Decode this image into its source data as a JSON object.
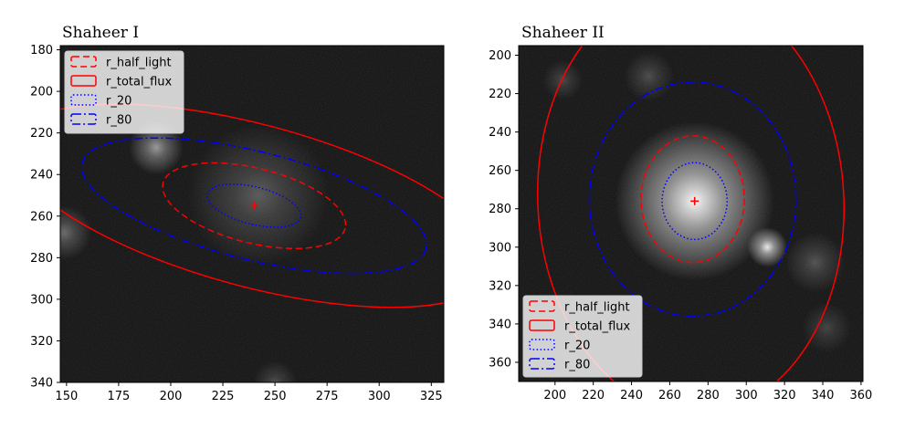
{
  "chart_data": [
    {
      "type": "scatter",
      "title": "Shaheer I",
      "xlabel": "",
      "ylabel": "",
      "xlim": [
        147,
        331
      ],
      "ylim": [
        340,
        178
      ],
      "y_inverted": true,
      "xticks": [
        150,
        175,
        200,
        225,
        250,
        275,
        300,
        325
      ],
      "yticks": [
        180,
        200,
        220,
        240,
        260,
        280,
        300,
        320,
        340
      ],
      "background": "grayscale image",
      "legend_position": "upper-left",
      "center": {
        "x": 240,
        "y": 255,
        "color": "#ff0000"
      },
      "ellipses": [
        {
          "name": "r_half_light",
          "cx": 240,
          "cy": 255,
          "a": 45,
          "b": 18,
          "angle_deg": 14,
          "color": "#ff0000",
          "linestyle": "dashed"
        },
        {
          "name": "r_total_flux",
          "cx": 240,
          "cy": 255,
          "a": 120,
          "b": 39,
          "angle_deg": 15,
          "color": "#ff0000",
          "linestyle": "solid"
        },
        {
          "name": "r_20",
          "cx": 240,
          "cy": 255,
          "a": 23,
          "b": 9,
          "angle_deg": 14,
          "color": "#0000ff",
          "linestyle": "dotted"
        },
        {
          "name": "r_80",
          "cx": 240,
          "cy": 255,
          "a": 85,
          "b": 26,
          "angle_deg": 14,
          "color": "#0000ff",
          "linestyle": "dashdot"
        }
      ],
      "blobs": [
        {
          "x": 242,
          "y": 250,
          "r": 13,
          "intensity": 0.28
        },
        {
          "x": 193,
          "y": 227,
          "r": 5,
          "intensity": 0.55
        },
        {
          "x": 149,
          "y": 268,
          "r": 5,
          "intensity": 0.35
        },
        {
          "x": 250,
          "y": 340,
          "r": 4,
          "intensity": 0.22
        }
      ]
    },
    {
      "type": "scatter",
      "title": "Shaheer II",
      "xlabel": "",
      "ylabel": "",
      "xlim": [
        181,
        361
      ],
      "ylim": [
        370,
        195
      ],
      "y_inverted": true,
      "xticks": [
        200,
        220,
        240,
        260,
        280,
        300,
        320,
        340,
        360
      ],
      "yticks": [
        200,
        220,
        240,
        260,
        280,
        300,
        320,
        340,
        360
      ],
      "background": "grayscale image",
      "legend_position": "lower-left",
      "center": {
        "x": 273,
        "y": 276,
        "color": "#ff0000"
      },
      "ellipses": [
        {
          "name": "r_half_light",
          "cx": 272,
          "cy": 275,
          "a": 27,
          "b": 33,
          "angle_deg": 0,
          "color": "#ff0000",
          "linestyle": "dashed"
        },
        {
          "name": "r_total_flux",
          "cx": 271,
          "cy": 276,
          "a": 80,
          "b": 111,
          "angle_deg": -3,
          "color": "#ff0000",
          "linestyle": "solid"
        },
        {
          "name": "r_20",
          "cx": 273,
          "cy": 276,
          "a": 17,
          "b": 20,
          "angle_deg": 0,
          "color": "#0000ff",
          "linestyle": "dotted"
        },
        {
          "name": "r_80",
          "cx": 272,
          "cy": 275,
          "a": 54,
          "b": 61,
          "angle_deg": 0,
          "color": "#0000ff",
          "linestyle": "dashdot"
        }
      ],
      "blobs": [
        {
          "x": 273,
          "y": 276,
          "r": 16,
          "intensity": 0.95
        },
        {
          "x": 311,
          "y": 300,
          "r": 4,
          "intensity": 0.9
        },
        {
          "x": 336,
          "y": 308,
          "r": 6,
          "intensity": 0.25
        },
        {
          "x": 342,
          "y": 342,
          "r": 5,
          "intensity": 0.18
        },
        {
          "x": 204,
          "y": 213,
          "r": 4,
          "intensity": 0.2
        },
        {
          "x": 249,
          "y": 211,
          "r": 5,
          "intensity": 0.22
        }
      ]
    }
  ]
}
